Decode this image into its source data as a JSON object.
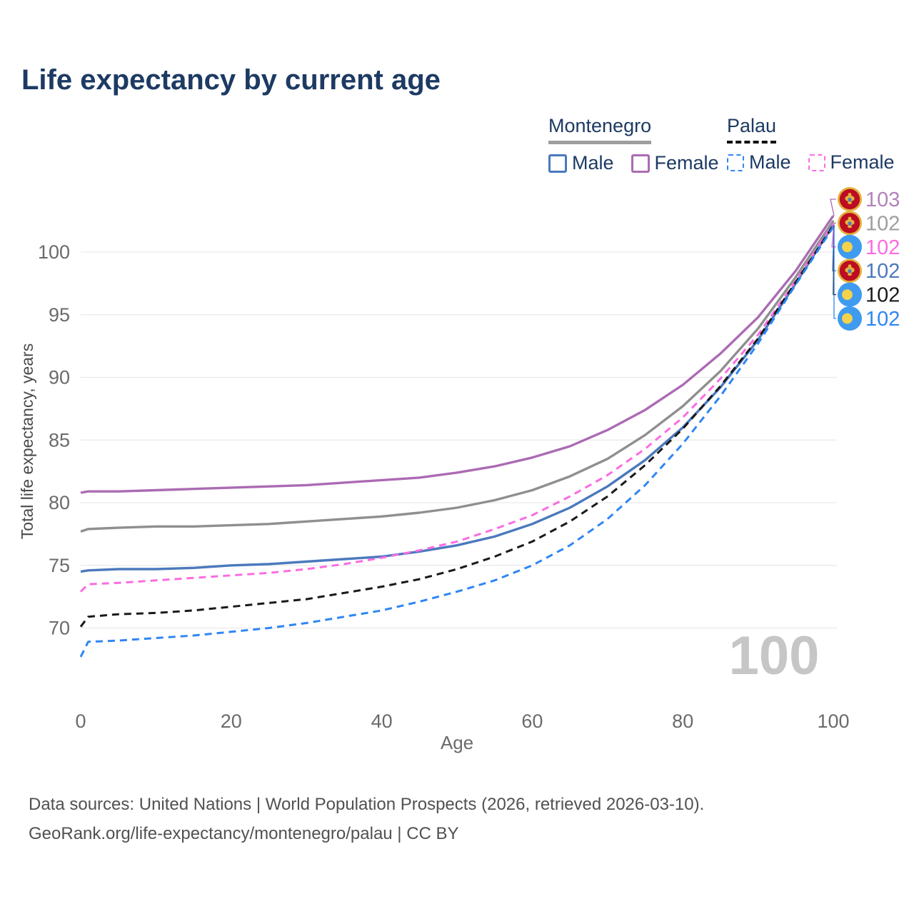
{
  "title": "Life expectancy by current age",
  "title_color": "#1d3a63",
  "watermark": "100",
  "legend": {
    "groups": [
      {
        "label": "Montenegro",
        "line_style": "solid",
        "underline_color": "#9e9e9e",
        "items": [
          {
            "label": "Male",
            "color": "#4b79bd",
            "style": "solid"
          },
          {
            "label": "Female",
            "color": "#ab6bb3",
            "style": "solid"
          }
        ]
      },
      {
        "label": "Palau",
        "line_style": "dashed",
        "underline_color": "#111111",
        "items": [
          {
            "label": "Male",
            "color": "#2f86f3",
            "style": "dashed"
          },
          {
            "label": "Female",
            "color": "#fb6ce1",
            "style": "dashed"
          }
        ]
      }
    ]
  },
  "footer": {
    "line1": "Data sources: United Nations | World Population Prospects (2026, retrieved 2026-03-10).",
    "line2": "GeoRank.org/life-expectancy/montenegro/palau | CC BY"
  },
  "chart_data": {
    "type": "line",
    "title": "Life expectancy by current age",
    "xlabel": "Age",
    "ylabel": "Total life expectancy, years",
    "xlim": [
      0,
      100
    ],
    "ylim": [
      67,
      104
    ],
    "xticks": [
      0,
      20,
      40,
      60,
      80,
      100
    ],
    "yticks": [
      70,
      75,
      80,
      85,
      90,
      95,
      100
    ],
    "grid": "horizontal-only",
    "legend_position": "top-right",
    "colors": {
      "grid": "#e9e9e9",
      "axis_text": "#6b6b6b",
      "ylabel_text": "#4a4a4a",
      "watermark": "#c6c6c6"
    },
    "flags": {
      "montenegro": {
        "ring": "#E2B33C",
        "field": "#BD0D22",
        "emblem": "#E2B33C",
        "shield": "#4A77C9"
      },
      "palau": {
        "field": "#3F9BEF",
        "disc": "#F5D24B"
      }
    },
    "x": [
      0,
      1,
      5,
      10,
      15,
      20,
      25,
      30,
      35,
      40,
      45,
      50,
      55,
      60,
      65,
      70,
      75,
      80,
      85,
      90,
      95,
      100
    ],
    "series": [
      {
        "id": "montenegro-female",
        "name": "Montenegro Female",
        "country": "Montenegro",
        "sex": "Female",
        "color": "#ab6bb3",
        "label_color": "#b183b9",
        "dash": "solid",
        "flag": "montenegro",
        "end_label": "103",
        "values": [
          80.8,
          80.9,
          80.9,
          81.0,
          81.1,
          81.2,
          81.3,
          81.4,
          81.6,
          81.8,
          82.0,
          82.4,
          82.9,
          83.6,
          84.5,
          85.8,
          87.4,
          89.4,
          91.9,
          94.8,
          98.5,
          102.9
        ]
      },
      {
        "id": "montenegro-total",
        "name": "Montenegro Total",
        "country": "Montenegro",
        "sex": "All",
        "color": "#8f8f8f",
        "label_color": "#9e9e9e",
        "dash": "solid",
        "flag": "montenegro",
        "end_label": "102",
        "values": [
          77.7,
          77.9,
          78.0,
          78.1,
          78.1,
          78.2,
          78.3,
          78.5,
          78.7,
          78.9,
          79.2,
          79.6,
          80.2,
          81.0,
          82.1,
          83.5,
          85.4,
          87.7,
          90.5,
          93.9,
          98.0,
          102.5
        ]
      },
      {
        "id": "montenegro-male",
        "name": "Montenegro Male",
        "country": "Montenegro",
        "sex": "Male",
        "color": "#4b79bd",
        "label_color": "#4b79bd",
        "dash": "solid",
        "flag": "montenegro",
        "end_label": "102",
        "values": [
          74.5,
          74.6,
          74.7,
          74.7,
          74.8,
          75.0,
          75.1,
          75.3,
          75.5,
          75.7,
          76.1,
          76.6,
          77.3,
          78.3,
          79.6,
          81.3,
          83.4,
          86.0,
          89.2,
          93.0,
          97.5,
          102.2
        ]
      },
      {
        "id": "palau-female",
        "name": "Palau Female",
        "country": "Palau",
        "sex": "Female",
        "color": "#fb6ce1",
        "label_color": "#fb6ce1",
        "dash": "dashed",
        "flag": "palau",
        "end_label": "102",
        "values": [
          72.9,
          73.5,
          73.6,
          73.8,
          74.0,
          74.2,
          74.4,
          74.7,
          75.1,
          75.6,
          76.2,
          76.9,
          77.9,
          79.0,
          80.5,
          82.2,
          84.3,
          86.8,
          89.9,
          93.4,
          97.7,
          102.3
        ]
      },
      {
        "id": "palau-total",
        "name": "Palau Total",
        "country": "Palau",
        "sex": "All",
        "color": "#1a1a1a",
        "label_color": "#1a1a1a",
        "dash": "dashed",
        "flag": "palau",
        "end_label": "102",
        "values": [
          70.1,
          70.9,
          71.1,
          71.2,
          71.4,
          71.7,
          72.0,
          72.3,
          72.8,
          73.3,
          73.9,
          74.7,
          75.7,
          76.9,
          78.5,
          80.5,
          83.0,
          85.9,
          89.3,
          93.1,
          97.6,
          102.1
        ]
      },
      {
        "id": "palau-male",
        "name": "Palau Male",
        "country": "Palau",
        "sex": "Male",
        "color": "#2f86f3",
        "label_color": "#2f86f3",
        "dash": "dashed",
        "flag": "palau",
        "end_label": "102",
        "values": [
          67.7,
          68.9,
          69.0,
          69.2,
          69.4,
          69.7,
          70.0,
          70.4,
          70.9,
          71.4,
          72.1,
          72.9,
          73.8,
          75.0,
          76.6,
          78.7,
          81.4,
          84.7,
          88.5,
          92.7,
          97.4,
          102.0
        ]
      }
    ]
  }
}
